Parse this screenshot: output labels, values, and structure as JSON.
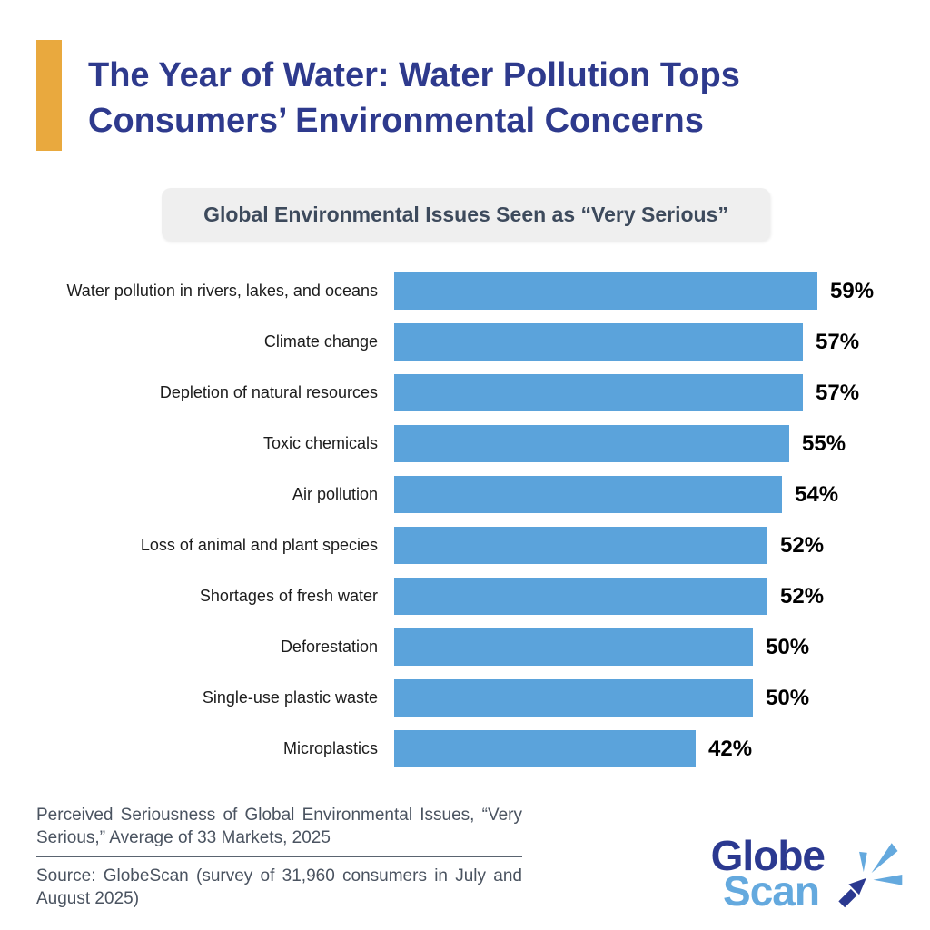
{
  "header": {
    "title_line1": "The Year of Water: Water Pollution Tops",
    "title_line2": "Consumers’ Environmental Concerns",
    "title_color": "#2E3A8D",
    "accent_color": "#E9A93E"
  },
  "subtitle": {
    "text": "Global Environmental Issues Seen as “Very Serious”",
    "background": "#EFEFEF",
    "text_color": "#3D4A5C"
  },
  "chart_data": {
    "type": "bar",
    "orientation": "horizontal",
    "title": "Global Environmental Issues Seen as “Very Serious”",
    "categories": [
      "Water pollution in rivers, lakes, and oceans",
      "Climate change",
      "Depletion of natural resources",
      "Toxic chemicals",
      "Air pollution",
      "Loss of animal and plant species",
      "Shortages of fresh water",
      "Deforestation",
      "Single-use plastic waste",
      "Microplastics"
    ],
    "values": [
      59,
      57,
      57,
      55,
      54,
      52,
      52,
      50,
      50,
      42
    ],
    "data_labels": [
      "59%",
      "57%",
      "57%",
      "55%",
      "54%",
      "52%",
      "52%",
      "50%",
      "50%",
      "42%"
    ],
    "value_suffix": "%",
    "bar_color": "#5BA3DB",
    "xlim": [
      0,
      63
    ],
    "grid": false,
    "legend": false
  },
  "footer": {
    "caption": "Perceived Seriousness of Global Environmental Issues, “Very Serious,” Average of 33 Markets, 2025",
    "source": "Source: GlobeScan (survey of 31,960 consumers in July and August 2025)"
  },
  "logo": {
    "word1": "Globe",
    "word2": "Scan",
    "navy": "#2B3990",
    "light_blue": "#64A9DE"
  }
}
